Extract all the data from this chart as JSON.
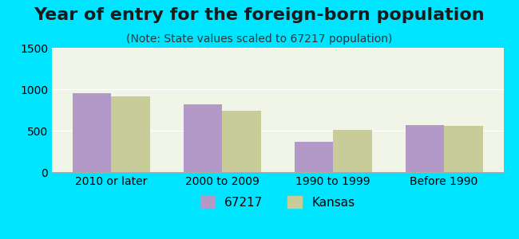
{
  "title": "Year of entry for the foreign-born population",
  "subtitle": "(Note: State values scaled to 67217 population)",
  "categories": [
    "2010 or later",
    "2000 to 2009",
    "1990 to 1999",
    "Before 1990"
  ],
  "values_67217": [
    950,
    820,
    370,
    570
  ],
  "values_kansas": [
    910,
    740,
    510,
    555
  ],
  "bar_color_67217": "#b399c8",
  "bar_color_kansas": "#c8cc99",
  "background_outer": "#00e5ff",
  "background_inner": "#f0f5e8",
  "ylim": [
    0,
    1500
  ],
  "yticks": [
    0,
    500,
    1000,
    1500
  ],
  "bar_width": 0.35,
  "legend_label_1": "67217",
  "legend_label_2": "Kansas",
  "title_fontsize": 16,
  "subtitle_fontsize": 10,
  "tick_fontsize": 10,
  "legend_fontsize": 11
}
